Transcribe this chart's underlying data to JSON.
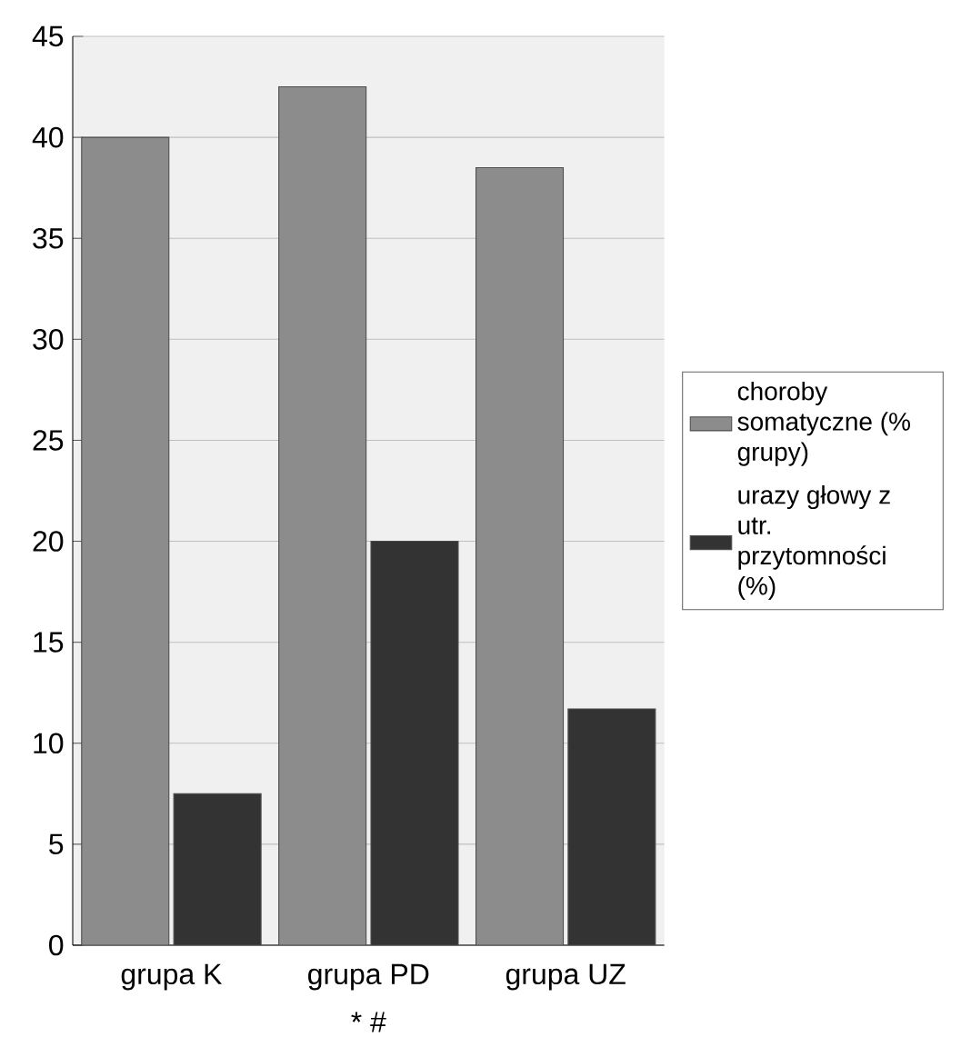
{
  "chart_data": {
    "type": "bar",
    "categories": [
      "grupa K",
      "grupa PD",
      "grupa UZ"
    ],
    "series": [
      {
        "name": "choroby somatyczne (% grupy)",
        "color": "#8c8c8c",
        "values": [
          40,
          42.5,
          38.5
        ]
      },
      {
        "name": "urazy głowy z utr. przytomności (%)",
        "color": "#333333",
        "values": [
          7.5,
          20,
          11.7
        ]
      }
    ],
    "ylim": [
      0,
      45
    ],
    "yticks": [
      0,
      5,
      10,
      15,
      20,
      25,
      30,
      35,
      40,
      45
    ],
    "grid": "y",
    "legend": "right",
    "annotations": [
      "* #"
    ]
  }
}
